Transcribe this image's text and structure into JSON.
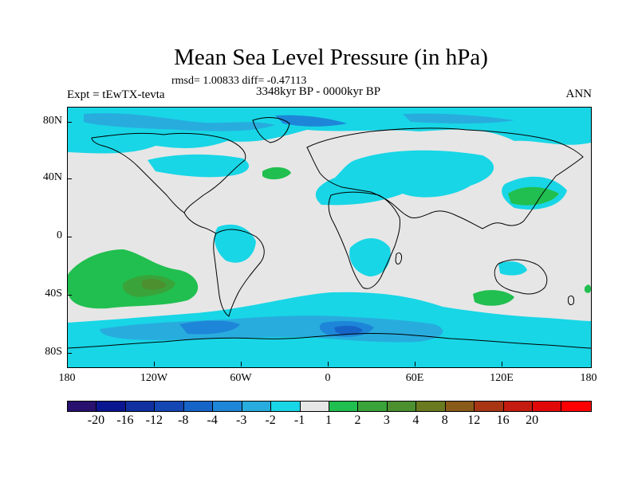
{
  "title": "Mean Sea Level Pressure (in hPa)",
  "stats": "rmsd= 1.00833 diff= -0.47113",
  "experiment": "Expt = tEwTX-tevta",
  "period": "3348kyr BP - 0000kyr BP",
  "season": "ANN",
  "lat_labels": [
    "80N",
    "40N",
    "0",
    "40S",
    "80S"
  ],
  "lon_labels": [
    "180",
    "120W",
    "60W",
    "0",
    "60E",
    "120E",
    "180"
  ],
  "colorbar": {
    "labels": [
      "-20",
      "-16",
      "-12",
      "-8",
      "-4",
      "-3",
      "-2",
      "-1",
      "1",
      "2",
      "3",
      "4",
      "8",
      "12",
      "16",
      "20"
    ],
    "colors": [
      "#28106e",
      "#0a1690",
      "#1030a0",
      "#1446b4",
      "#1764c8",
      "#1e86d8",
      "#28acde",
      "#18d6e6",
      "#e6e6e6",
      "#20bf4f",
      "#3aa43a",
      "#4c9030",
      "#6a7a20",
      "#8a5a18",
      "#a83614",
      "#c41c10",
      "#e00808",
      "#ff0000"
    ]
  },
  "colors": {
    "neutral": "#e6e6e6",
    "cyan": "#18d6e6",
    "light_blue": "#28acde",
    "mid_blue": "#1e86d8",
    "dark_blue": "#1764c8",
    "green": "#20bf4f",
    "dark_green": "#3aa43a",
    "olive": "#4c9030"
  }
}
